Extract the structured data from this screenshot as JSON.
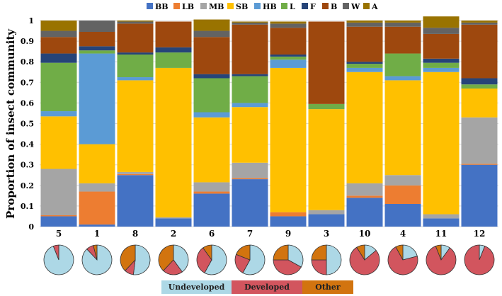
{
  "chart_data": [
    {
      "type": "bar",
      "stacked": true,
      "ylabel": "Proportion of insect community",
      "ylim": [
        0,
        1
      ],
      "yticks": [
        "0",
        "0.1",
        "0.2",
        "0.3",
        "0.4",
        "0.5",
        "0.6",
        "0.7",
        "0.8",
        "0.9",
        "1"
      ],
      "legend_position": "top",
      "grid": true,
      "categories": [
        "5",
        "1",
        "8",
        "2",
        "6",
        "7",
        "9",
        "3",
        "10",
        "4",
        "11",
        "12"
      ],
      "series": [
        {
          "name": "BB",
          "color": "#4472C4",
          "values": [
            0.05,
            0.01,
            0.25,
            0.04,
            0.16,
            0.23,
            0.05,
            0.06,
            0.14,
            0.11,
            0.04,
            0.3
          ]
        },
        {
          "name": "LB",
          "color": "#ED7D31",
          "values": [
            0.005,
            0.16,
            0.005,
            0.0,
            0.01,
            0.005,
            0.02,
            0.0,
            0.01,
            0.09,
            0.0,
            0.005
          ]
        },
        {
          "name": "MB",
          "color": "#A5A5A5",
          "values": [
            0.225,
            0.04,
            0.01,
            0.005,
            0.045,
            0.075,
            0.0,
            0.02,
            0.06,
            0.05,
            0.02,
            0.225
          ]
        },
        {
          "name": "SB",
          "color": "#FFC000",
          "values": [
            0.255,
            0.19,
            0.445,
            0.725,
            0.315,
            0.27,
            0.7,
            0.49,
            0.54,
            0.46,
            0.69,
            0.14
          ]
        },
        {
          "name": "HB",
          "color": "#5B9BD5",
          "values": [
            0.025,
            0.44,
            0.015,
            0.0,
            0.025,
            0.02,
            0.04,
            0.0,
            0.02,
            0.02,
            0.02,
            0.0
          ]
        },
        {
          "name": "L",
          "color": "#70AD47",
          "values": [
            0.235,
            0.015,
            0.11,
            0.075,
            0.165,
            0.13,
            0.015,
            0.025,
            0.02,
            0.11,
            0.025,
            0.02
          ]
        },
        {
          "name": "F",
          "color": "#264478",
          "values": [
            0.045,
            0.02,
            0.01,
            0.025,
            0.02,
            0.01,
            0.01,
            0.0,
            0.01,
            0.0,
            0.02,
            0.03
          ]
        },
        {
          "name": "B",
          "color": "#9E480E",
          "values": [
            0.08,
            0.07,
            0.14,
            0.125,
            0.18,
            0.24,
            0.13,
            0.4,
            0.17,
            0.13,
            0.12,
            0.26
          ]
        },
        {
          "name": "W",
          "color": "#636363",
          "values": [
            0.03,
            0.055,
            0.01,
            0.0,
            0.03,
            0.01,
            0.02,
            0.0,
            0.02,
            0.02,
            0.03,
            0.01
          ]
        },
        {
          "name": "A",
          "color": "#997300",
          "values": [
            0.05,
            0.0,
            0.005,
            0.0,
            0.055,
            0.005,
            0.01,
            0.0,
            0.01,
            0.01,
            0.055,
            0.01
          ]
        }
      ]
    },
    {
      "type": "pie",
      "description_categories": [
        "5",
        "1",
        "8",
        "2",
        "6",
        "7",
        "9",
        "3",
        "10",
        "4",
        "11",
        "12"
      ],
      "slice_names": [
        "Undeveloped",
        "Developed",
        "Other"
      ],
      "slice_colors": [
        "#ADD8E6",
        "#D2555E",
        "#D2740F"
      ],
      "values": [
        [
          0.94,
          0.06,
          0.0
        ],
        [
          0.88,
          0.08,
          0.04
        ],
        [
          0.52,
          0.1,
          0.38
        ],
        [
          0.4,
          0.22,
          0.38
        ],
        [
          0.58,
          0.32,
          0.1
        ],
        [
          0.58,
          0.23,
          0.19
        ],
        [
          0.33,
          0.42,
          0.25
        ],
        [
          0.5,
          0.25,
          0.25
        ],
        [
          0.14,
          0.77,
          0.09
        ],
        [
          0.21,
          0.71,
          0.08
        ],
        [
          0.1,
          0.84,
          0.06
        ],
        [
          0.06,
          0.94,
          0.0
        ]
      ]
    }
  ],
  "bottom_legend": [
    {
      "label": "Undeveloped",
      "color": "#ADD8E6"
    },
    {
      "label": "Developed",
      "color": "#D2555E"
    },
    {
      "label": "Other",
      "color": "#D2740F"
    }
  ]
}
